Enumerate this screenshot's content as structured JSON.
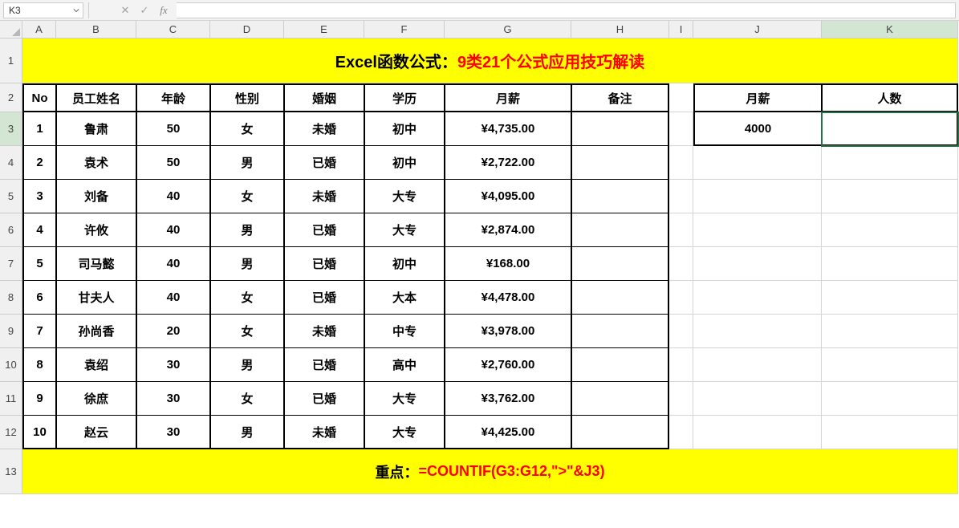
{
  "formulaBar": {
    "nameBox": "K3",
    "cancelGlyph": "✕",
    "confirmGlyph": "✓",
    "fxLabel": "fx",
    "formula": ""
  },
  "columns": [
    {
      "label": "A",
      "width": 42
    },
    {
      "label": "B",
      "width": 100
    },
    {
      "label": "C",
      "width": 92
    },
    {
      "label": "D",
      "width": 92
    },
    {
      "label": "E",
      "width": 100
    },
    {
      "label": "F",
      "width": 100
    },
    {
      "label": "G",
      "width": 158
    },
    {
      "label": "H",
      "width": 122
    },
    {
      "label": "I",
      "width": 30
    },
    {
      "label": "J",
      "width": 160
    },
    {
      "label": "K",
      "width": 170
    }
  ],
  "rows": [
    {
      "num": 1,
      "height": 56
    },
    {
      "num": 2,
      "height": 36
    },
    {
      "num": 3,
      "height": 42
    },
    {
      "num": 4,
      "height": 42
    },
    {
      "num": 5,
      "height": 42
    },
    {
      "num": 6,
      "height": 42
    },
    {
      "num": 7,
      "height": 42
    },
    {
      "num": 8,
      "height": 42
    },
    {
      "num": 9,
      "height": 42
    },
    {
      "num": 10,
      "height": 42
    },
    {
      "num": 11,
      "height": 42
    },
    {
      "num": 12,
      "height": 42
    },
    {
      "num": 13,
      "height": 56
    }
  ],
  "selectedCell": {
    "row": 3,
    "col": "K"
  },
  "title": {
    "prefix": "Excel函数公式：",
    "suffix": "9类21个公式应用技巧解读",
    "bg": "#ffff00",
    "prefixColor": "#000000",
    "suffixColor": "#ff0000"
  },
  "headers": {
    "no": "No",
    "name": "员工姓名",
    "age": "年龄",
    "gender": "性别",
    "marriage": "婚姻",
    "education": "学历",
    "salary": "月薪",
    "remark": "备注",
    "j": "月薪",
    "k": "人数"
  },
  "data": [
    {
      "no": "1",
      "name": "鲁肃",
      "age": "50",
      "gender": "女",
      "marriage": "未婚",
      "education": "初中",
      "salary": "¥4,735.00"
    },
    {
      "no": "2",
      "name": "袁术",
      "age": "50",
      "gender": "男",
      "marriage": "已婚",
      "education": "初中",
      "salary": "¥2,722.00"
    },
    {
      "no": "3",
      "name": "刘备",
      "age": "40",
      "gender": "女",
      "marriage": "未婚",
      "education": "大专",
      "salary": "¥4,095.00"
    },
    {
      "no": "4",
      "name": "许攸",
      "age": "40",
      "gender": "男",
      "marriage": "已婚",
      "education": "大专",
      "salary": "¥2,874.00"
    },
    {
      "no": "5",
      "name": "司马懿",
      "age": "40",
      "gender": "男",
      "marriage": "已婚",
      "education": "初中",
      "salary": "¥168.00"
    },
    {
      "no": "6",
      "name": "甘夫人",
      "age": "40",
      "gender": "女",
      "marriage": "已婚",
      "education": "大本",
      "salary": "¥4,478.00"
    },
    {
      "no": "7",
      "name": "孙尚香",
      "age": "20",
      "gender": "女",
      "marriage": "未婚",
      "education": "中专",
      "salary": "¥3,978.00"
    },
    {
      "no": "8",
      "name": "袁绍",
      "age": "30",
      "gender": "男",
      "marriage": "已婚",
      "education": "高中",
      "salary": "¥2,760.00"
    },
    {
      "no": "9",
      "name": "徐庶",
      "age": "30",
      "gender": "女",
      "marriage": "已婚",
      "education": "大专",
      "salary": "¥3,762.00"
    },
    {
      "no": "10",
      "name": "赵云",
      "age": "30",
      "gender": "男",
      "marriage": "未婚",
      "education": "大专",
      "salary": "¥4,425.00"
    }
  ],
  "lookup": {
    "j3": "4000",
    "k3": ""
  },
  "footer": {
    "prefix": "重点：",
    "formula": "=COUNTIF(G3:G12,\">\"&J3)",
    "bg": "#ffff00",
    "prefixColor": "#000000",
    "formulaColor": "#ff0000"
  },
  "colors": {
    "highlightBg": "#ffff00",
    "gridLine": "#d4d4d4",
    "headerBg": "#f0f0f0",
    "selectionBorder": "#217346"
  }
}
